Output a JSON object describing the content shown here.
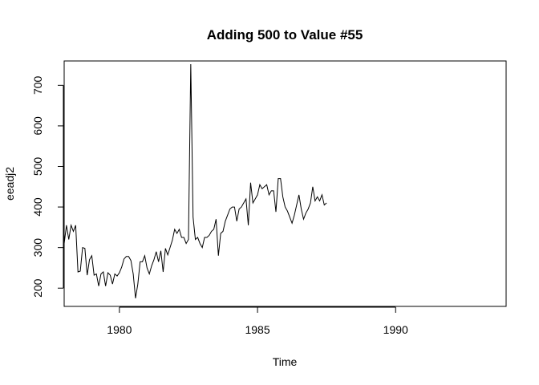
{
  "chart_data": {
    "type": "line",
    "title": "Adding 500 to Value #55",
    "xlabel": "Time",
    "ylabel": "eeadj2",
    "xlim": [
      1978.0,
      1994.0
    ],
    "ylim": [
      155,
      760
    ],
    "grid": false,
    "x_ticks": [
      1980,
      1985,
      1990
    ],
    "x_tick_labels": [
      "1980",
      "1985",
      "1990"
    ],
    "y_ticks": [
      200,
      300,
      400,
      500,
      600,
      700
    ],
    "y_tick_labels": [
      "200",
      "300",
      "400",
      "500",
      "600",
      "700"
    ],
    "series": [
      {
        "start": 1978.0,
        "frequency": 12,
        "color": "#000000",
        "values": [
          310,
          355,
          320,
          355,
          340,
          355,
          240,
          242,
          300,
          298,
          232,
          270,
          280,
          232,
          235,
          205,
          235,
          240,
          205,
          238,
          232,
          210,
          235,
          230,
          238,
          252,
          272,
          278,
          278,
          268,
          235,
          175,
          210,
          265,
          265,
          280,
          250,
          235,
          255,
          270,
          290,
          265,
          292,
          240,
          298,
          282,
          300,
          318,
          345,
          335,
          345,
          325,
          325,
          310,
          320,
          752,
          375,
          320,
          325,
          310,
          300,
          325,
          325,
          330,
          340,
          345,
          370,
          280,
          335,
          340,
          365,
          380,
          395,
          400,
          400,
          365,
          395,
          400,
          410,
          420,
          355,
          460,
          410,
          420,
          430,
          455,
          445,
          450,
          455,
          430,
          440,
          440,
          388,
          470,
          470,
          425,
          400,
          390,
          375,
          360,
          380,
          405,
          430,
          395,
          370,
          385,
          395,
          410,
          450,
          415,
          425,
          415,
          430,
          405,
          410
        ]
      }
    ]
  }
}
